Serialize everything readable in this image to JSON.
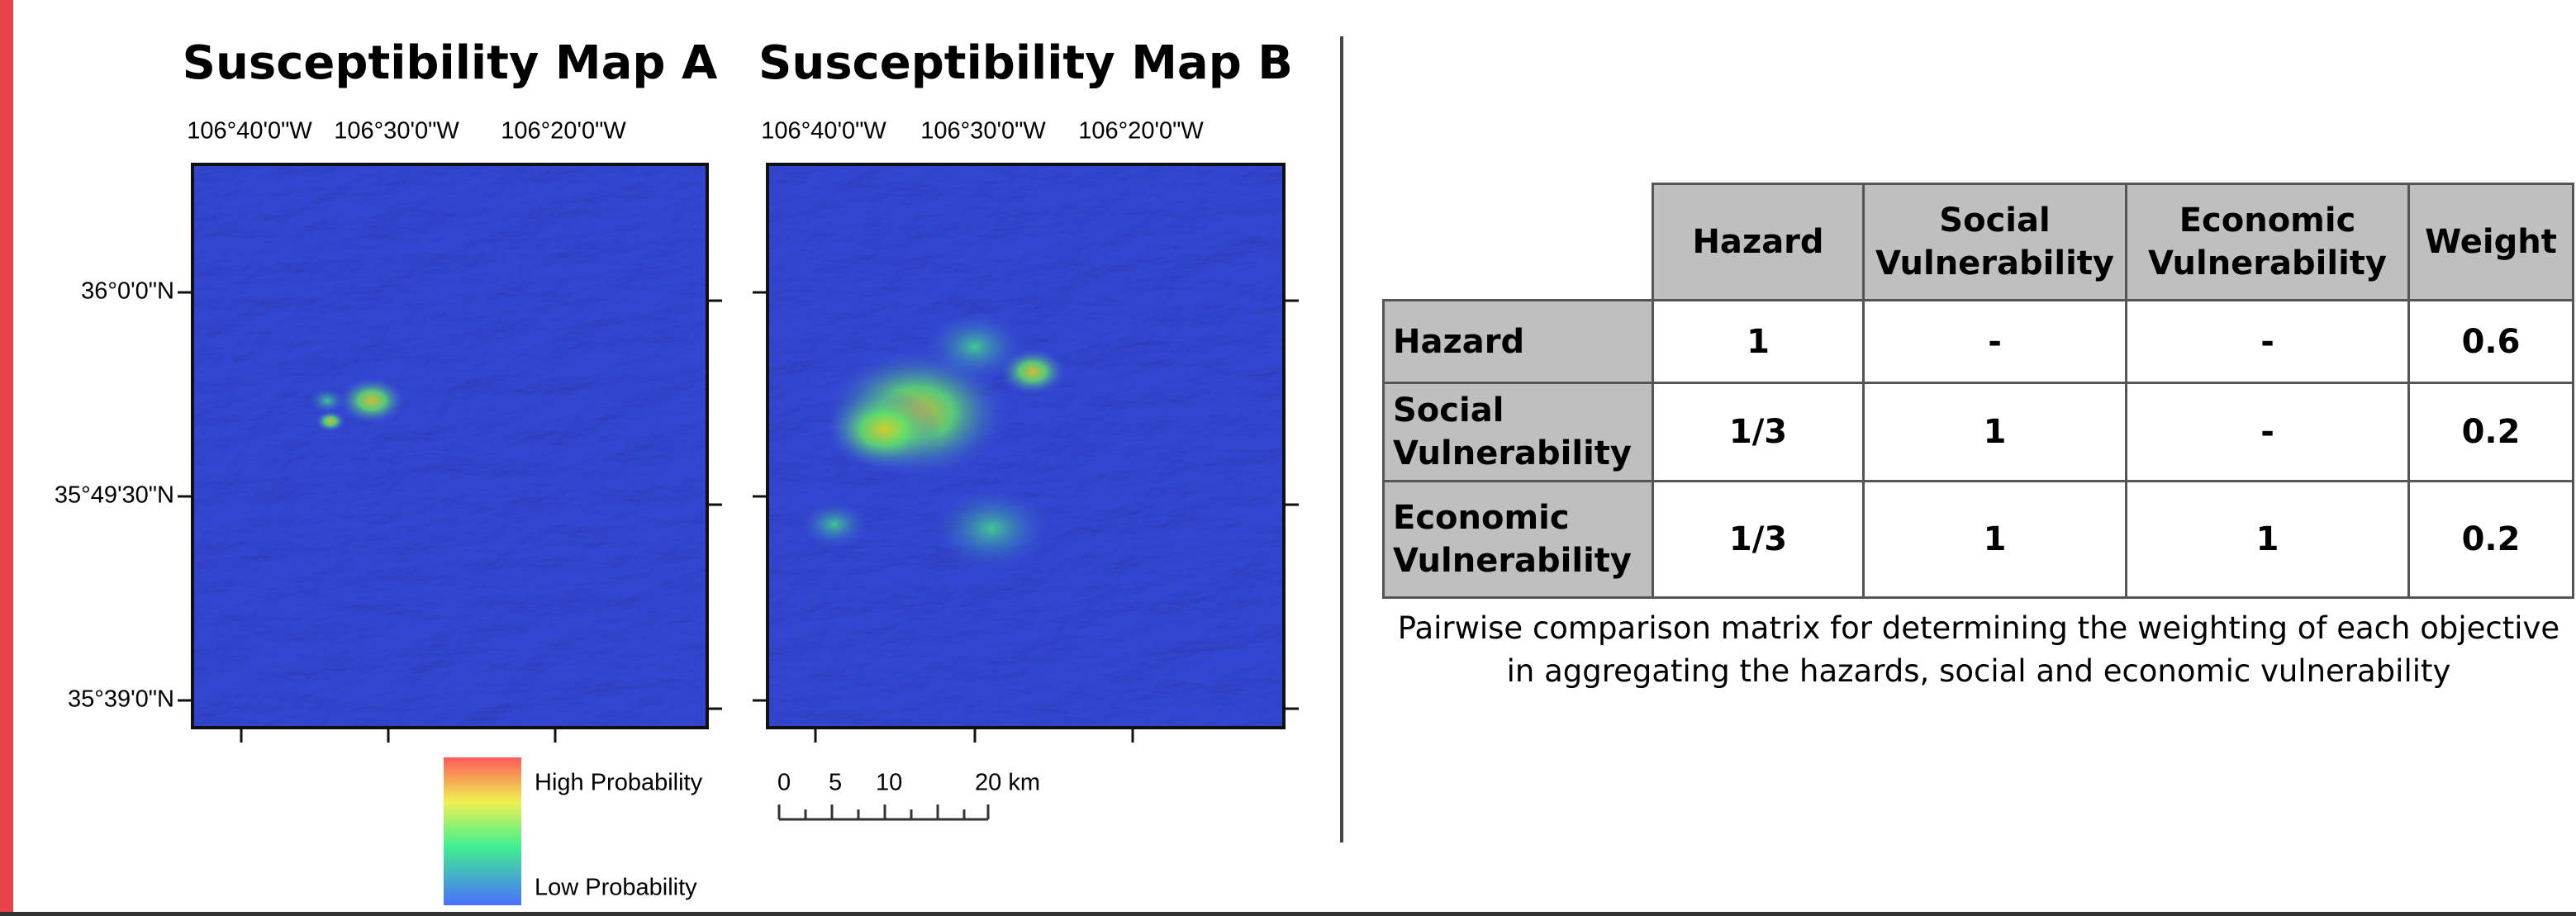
{
  "maps": [
    {
      "title": "Susceptibility Map A",
      "lon_labels": [
        "106°40'0\"W",
        "106°30'0\"W",
        "106°20'0\"W"
      ],
      "lat_labels": [
        "36°0'0\"N",
        "35°49'30\"N",
        "35°39'0\"N"
      ]
    },
    {
      "title": "Susceptibility Map B",
      "lon_labels": [
        "106°40'0\"W",
        "106°30'0\"W",
        "106°20'0\"W"
      ]
    }
  ],
  "legend": {
    "high": "High Probability",
    "low": "Low Probability"
  },
  "scale_bar": [
    "0",
    "5",
    "10",
    "20 km"
  ],
  "table": {
    "header": [
      "Hazard",
      "Social Vulnerability",
      "Economic Vulnerability",
      "Weight"
    ],
    "rows": [
      {
        "label": "Hazard",
        "cells": [
          "1",
          "-",
          "-",
          "0.6"
        ]
      },
      {
        "label": "Social Vulnerability",
        "cells": [
          "1/3",
          "1",
          "-",
          "0.2"
        ]
      },
      {
        "label": "Economic Vulnerability",
        "cells": [
          "1/3",
          "1",
          "1",
          "0.2"
        ]
      }
    ]
  },
  "caption": "Pairwise comparison matrix for determining the weighting of each objective in aggregating the hazards, social and economic vulnerability"
}
